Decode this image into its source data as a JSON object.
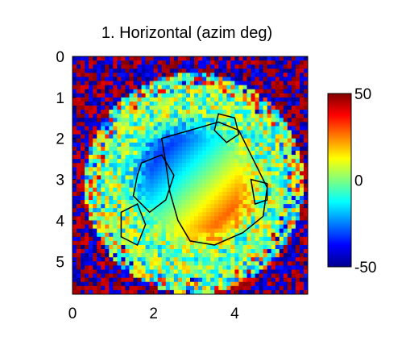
{
  "chart_data": {
    "type": "heatmap",
    "title": "1. Horizontal (azim deg)",
    "xlabel": "",
    "ylabel": "",
    "xlim": [
      0,
      5.8
    ],
    "ylim": [
      0,
      5.8
    ],
    "y_inverted": true,
    "x_ticks": [
      "0",
      "2",
      "4"
    ],
    "y_ticks": [
      "0",
      "1",
      "2",
      "3",
      "4",
      "5"
    ],
    "colorbar": {
      "min": -50,
      "max": 50,
      "colormap": "jet",
      "tick_labels": [
        "50",
        "0",
        "-50"
      ]
    },
    "field": {
      "description_values": "azimuth angle (deg)",
      "center_x": 3.0,
      "center_y": 3.1,
      "core_min": -50,
      "core_max": 45,
      "background": 0
    },
    "overlay": "black ROI contours"
  }
}
